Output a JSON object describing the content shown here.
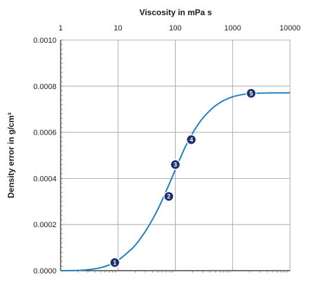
{
  "chart_data": {
    "type": "line",
    "title": "",
    "xlabel": "Viscosity in mPa s",
    "ylabel": "Density error in g/cm³",
    "xscale": "log",
    "xlim": [
      1,
      10000
    ],
    "ylim": [
      0,
      0.001
    ],
    "xaxis_position": "top",
    "grid": true,
    "x_ticks": [
      "1",
      "10",
      "100",
      "1000",
      "10000"
    ],
    "y_ticks": [
      "0.0000",
      "0.0002",
      "0.0004",
      "0.0006",
      "0.0008",
      "0.0010"
    ],
    "series": [
      {
        "color": "#1f7fbf",
        "x": [
          1,
          2,
          3,
          5,
          8,
          10,
          15,
          20,
          30,
          40,
          50,
          60,
          70,
          80,
          90,
          100,
          120,
          150,
          200,
          250,
          300,
          400,
          500,
          700,
          1000,
          1500,
          2000,
          3000,
          5000,
          10000
        ],
        "y": [
          0.0,
          1e-06,
          4e-06,
          1.3e-05,
          3e-05,
          4.4e-05,
          8e-05,
          0.00011,
          0.00017,
          0.000222,
          0.000268,
          0.00031,
          0.000348,
          0.000381,
          0.000411,
          0.000438,
          0.000484,
          0.000538,
          0.000596,
          0.000634,
          0.000661,
          0.000694,
          0.000715,
          0.000738,
          0.000754,
          0.000764,
          0.000768,
          0.00077,
          0.000771,
          0.000771
        ]
      }
    ],
    "markers": [
      {
        "label": "1",
        "x": 8.8,
        "y": 3.5e-05
      },
      {
        "label": "2",
        "x": 77,
        "y": 0.000322
      },
      {
        "label": "3",
        "x": 100,
        "y": 0.00046
      },
      {
        "label": "4",
        "x": 190,
        "y": 0.000568
      },
      {
        "label": "5",
        "x": 2100,
        "y": 0.000769
      }
    ],
    "marker_color": "#1a2d6e"
  }
}
